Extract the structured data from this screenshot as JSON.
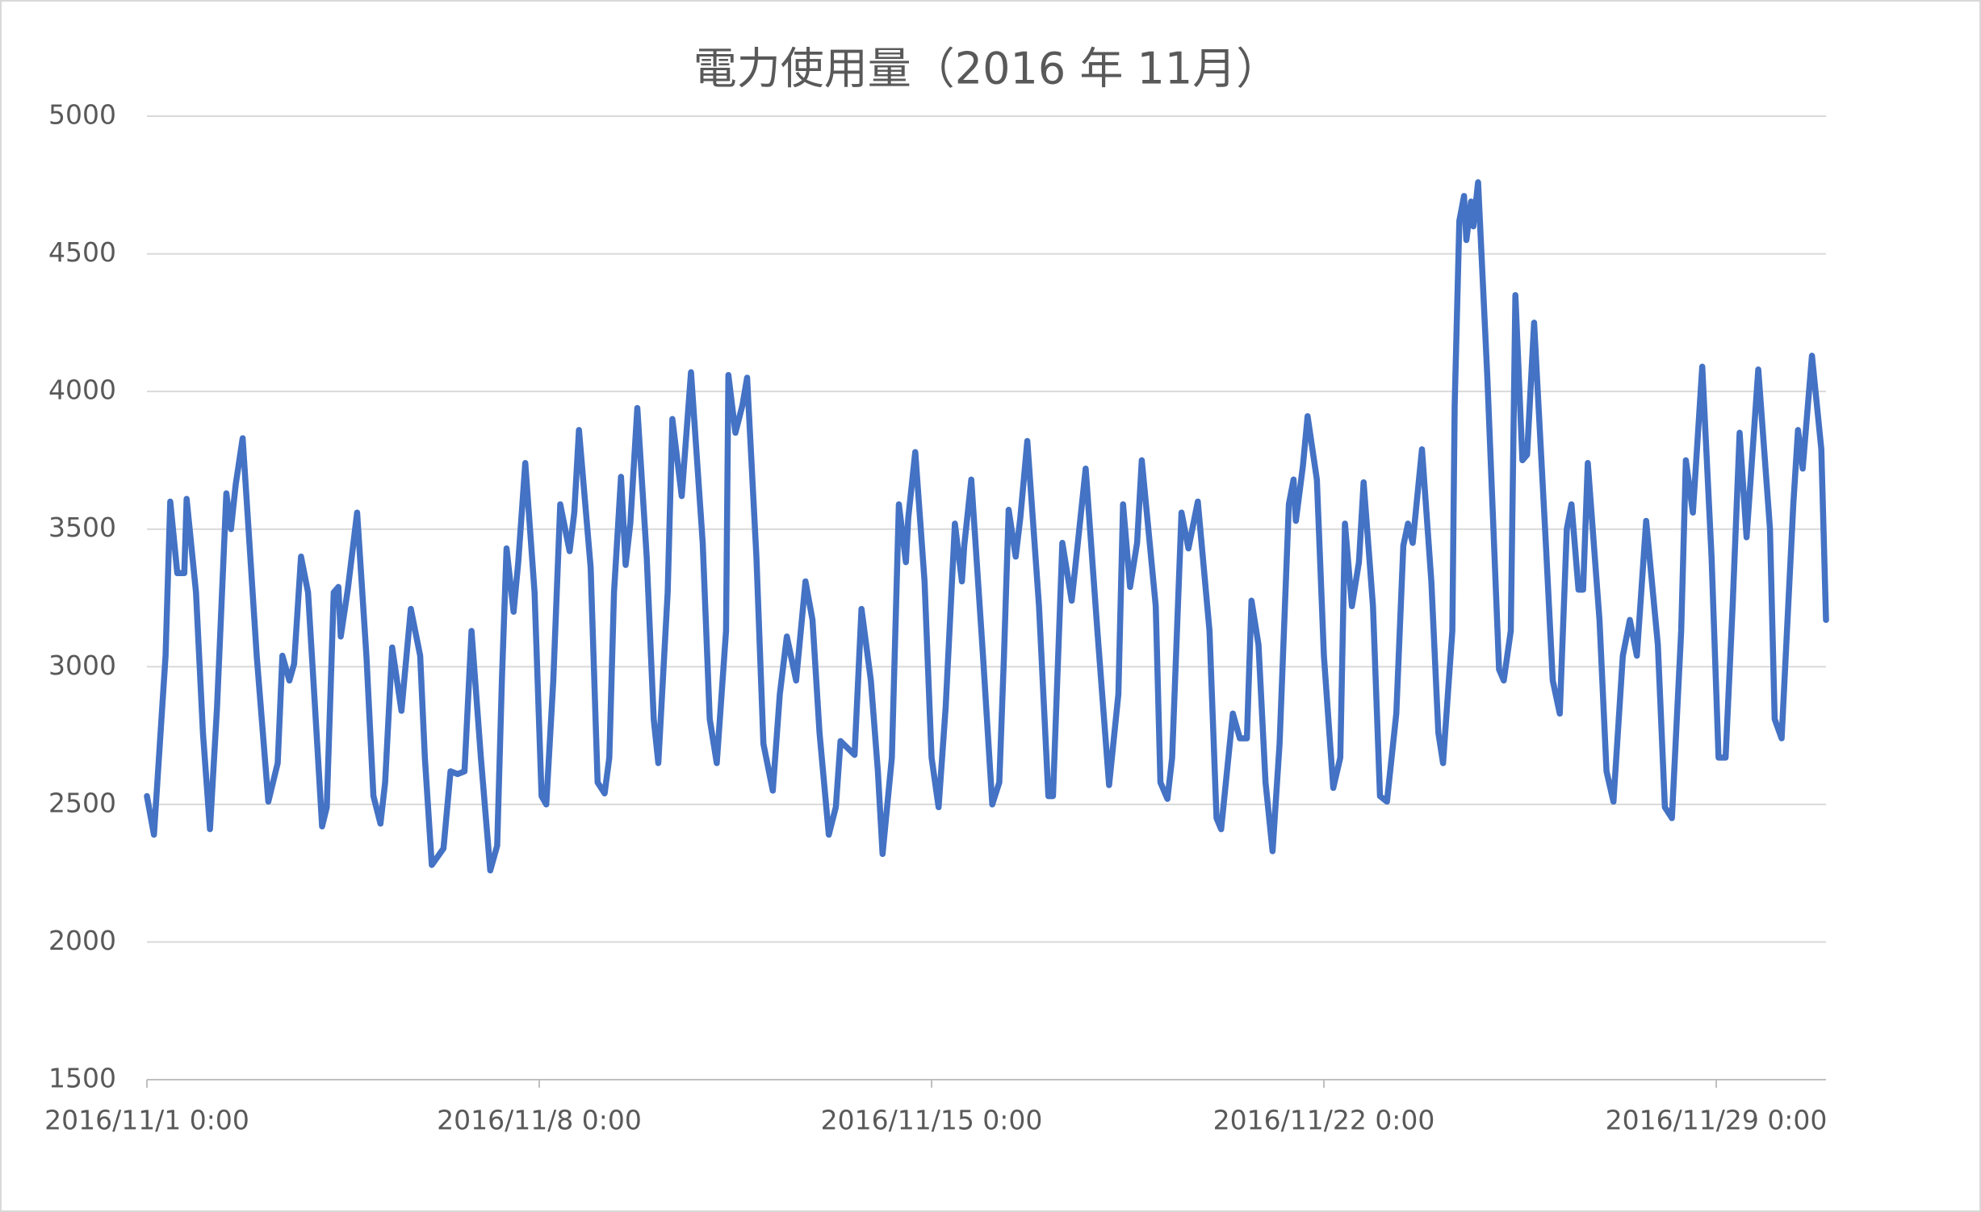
{
  "chart_data": {
    "type": "line",
    "title": "電力使用量（2016 年 11月）",
    "color": "#4472c4",
    "grid": true,
    "ylim": [
      1500,
      5000
    ],
    "yticks": [
      1500,
      2000,
      2500,
      3000,
      3500,
      4000,
      4500,
      5000
    ],
    "xlim": [
      "2016/11/1 0:00",
      "2016/11/30 23:00"
    ],
    "xticks": [
      "2016/11/1 0:00",
      "2016/11/8 0:00",
      "2016/11/15 0:00",
      "2016/11/22 0:00",
      "2016/11/29 0:00"
    ],
    "x": [
      "2016/11/1 0:00",
      "2016/11/1 3:00",
      "2016/11/1 8:00",
      "2016/11/1 10:00",
      "2016/11/1 13:00",
      "2016/11/1 16:00",
      "2016/11/1 17:00",
      "2016/11/1 21:00",
      "2016/11/2 0:00",
      "2016/11/2 3:00",
      "2016/11/2 6:00",
      "2016/11/2 10:00",
      "2016/11/2 12:00",
      "2016/11/2 14:00",
      "2016/11/2 17:00",
      "2016/11/2 23:00",
      "2016/11/3 4:00",
      "2016/11/3 8:00",
      "2016/11/3 10:00",
      "2016/11/3 13:00",
      "2016/11/3 15:00",
      "2016/11/3 18:00",
      "2016/11/3 21:00",
      "2016/11/4 0:00",
      "2016/11/4 3:00",
      "2016/11/4 5:00",
      "2016/11/4 8:00",
      "2016/11/4 10:00",
      "2016/11/4 11:00",
      "2016/11/4 14:00",
      "2016/11/4 18:00",
      "2016/11/4 22:00",
      "2016/11/5 1:00",
      "2016/11/5 4:00",
      "2016/11/5 6:00",
      "2016/11/5 9:00",
      "2016/11/5 13:00",
      "2016/11/5 17:00",
      "2016/11/5 21:00",
      "2016/11/5 23:00",
      "2016/11/6 2:00",
      "2016/11/6 7:00",
      "2016/11/6 10:00",
      "2016/11/6 13:00",
      "2016/11/6 16:00",
      "2016/11/6 19:00",
      "2016/11/6 23:00",
      "2016/11/7 3:00",
      "2016/11/7 6:00",
      "2016/11/7 8:00",
      "2016/11/7 10:00",
      "2016/11/7 13:00",
      "2016/11/7 15:00",
      "2016/11/7 18:00",
      "2016/11/7 22:00",
      "2016/11/8 1:00",
      "2016/11/8 3:00",
      "2016/11/8 6:00",
      "2016/11/8 9:00",
      "2016/11/8 13:00",
      "2016/11/8 15:00",
      "2016/11/8 17:00",
      "2016/11/8 22:00",
      "2016/11/9 1:00",
      "2016/11/9 4:00",
      "2016/11/9 6:00",
      "2016/11/9 8:00",
      "2016/11/9 11:00",
      "2016/11/9 13:00",
      "2016/11/9 15:00",
      "2016/11/9 18:00",
      "2016/11/9 22:00",
      "2016/11/10 1:00",
      "2016/11/10 3:00",
      "2016/11/10 7:00",
      "2016/11/10 9:00",
      "2016/11/10 13:00",
      "2016/11/10 17:00",
      "2016/11/10 22:00",
      "2016/11/11 1:00",
      "2016/11/11 4:00",
      "2016/11/11 8:00",
      "2016/11/11 9:00",
      "2016/11/11 12:00",
      "2016/11/11 15:00",
      "2016/11/11 17:00",
      "2016/11/11 21:00",
      "2016/11/12 0:00",
      "2016/11/12 4:00",
      "2016/11/12 7:00",
      "2016/11/12 10:00",
      "2016/11/12 14:00",
      "2016/11/12 18:00",
      "2016/11/12 21:00",
      "2016/11/13 0:00",
      "2016/11/13 4:00",
      "2016/11/13 7:00",
      "2016/11/13 9:00",
      "2016/11/13 15:00",
      "2016/11/13 18:00",
      "2016/11/13 22:00",
      "2016/11/14 1:00",
      "2016/11/14 3:00",
      "2016/11/14 7:00",
      "2016/11/14 10:00",
      "2016/11/14 13:00",
      "2016/11/14 14:00",
      "2016/11/14 17:00",
      "2016/11/14 21:00",
      "2016/11/15 0:00",
      "2016/11/15 3:00",
      "2016/11/15 6:00",
      "2016/11/15 10:00",
      "2016/11/15 13:00",
      "2016/11/15 14:00",
      "2016/11/15 17:00",
      "2016/11/15 22:00",
      "2016/11/16 2:00",
      "2016/11/16 5:00",
      "2016/11/16 7:00",
      "2016/11/16 9:00",
      "2016/11/16 12:00",
      "2016/11/16 14:00",
      "2016/11/16 17:00",
      "2016/11/16 22:00",
      "2016/11/17 2:00",
      "2016/11/17 4:00",
      "2016/11/17 8:00",
      "2016/11/17 12:00",
      "2016/11/17 14:00",
      "2016/11/17 18:00",
      "2016/11/17 23:00",
      "2016/11/18 4:00",
      "2016/11/18 8:00",
      "2016/11/18 10:00",
      "2016/11/18 13:00",
      "2016/11/18 16:00",
      "2016/11/18 18:00",
      "2016/11/19 0:00",
      "2016/11/19 2:00",
      "2016/11/19 5:00",
      "2016/11/19 7:00",
      "2016/11/19 11:00",
      "2016/11/19 14:00",
      "2016/11/19 18:00",
      "2016/11/19 23:00",
      "2016/11/20 2:00",
      "2016/11/20 4:00",
      "2016/11/20 9:00",
      "2016/11/20 12:00",
      "2016/11/20 15:00",
      "2016/11/20 17:00",
      "2016/11/20 20:00",
      "2016/11/20 23:00",
      "2016/11/21 2:00",
      "2016/11/21 5:00",
      "2016/11/21 9:00",
      "2016/11/21 11:00",
      "2016/11/21 12:00",
      "2016/11/21 15:00",
      "2016/11/21 17:00",
      "2016/11/21 21:00",
      "2016/11/22 0:00",
      "2016/11/22 4:00",
      "2016/11/22 7:00",
      "2016/11/22 9:00",
      "2016/11/22 12:00",
      "2016/11/22 15:00",
      "2016/11/22 17:00",
      "2016/11/22 21:00",
      "2016/11/23 0:00",
      "2016/11/23 3:00",
      "2016/11/23 7:00",
      "2016/11/23 10:00",
      "2016/11/23 12:00",
      "2016/11/23 14:00",
      "2016/11/23 18:00",
      "2016/11/23 22:00",
      "2016/11/24 1:00",
      "2016/11/24 3:00",
      "2016/11/24 7:00",
      "2016/11/24 8:00",
      "2016/11/24 10:00",
      "2016/11/24 12:00",
      "2016/11/24 13:00",
      "2016/11/24 15:00",
      "2016/11/24 16:00",
      "2016/11/24 18:00",
      "2016/11/24 22:00",
      "2016/11/25 3:00",
      "2016/11/25 5:00",
      "2016/11/25 8:00",
      "2016/11/25 10:00",
      "2016/11/25 13:00",
      "2016/11/25 15:00",
      "2016/11/25 18:00",
      "2016/11/25 23:00",
      "2016/11/26 2:00",
      "2016/11/26 5:00",
      "2016/11/26 8:00",
      "2016/11/26 10:00",
      "2016/11/26 13:00",
      "2016/11/26 15:00",
      "2016/11/26 17:00",
      "2016/11/26 22:00",
      "2016/11/27 1:00",
      "2016/11/27 4:00",
      "2016/11/27 8:00",
      "2016/11/27 11:00",
      "2016/11/27 14:00",
      "2016/11/27 18:00",
      "2016/11/27 23:00",
      "2016/11/28 2:00",
      "2016/11/28 5:00",
      "2016/11/28 9:00",
      "2016/11/28 11:00",
      "2016/11/28 14:00",
      "2016/11/28 18:00",
      "2016/11/28 22:00",
      "2016/11/29 1:00",
      "2016/11/29 4:00",
      "2016/11/29 7:00",
      "2016/11/29 10:00",
      "2016/11/29 13:00",
      "2016/11/29 18:00",
      "2016/11/29 23:00",
      "2016/11/30 1:00",
      "2016/11/30 4:00",
      "2016/11/30 9:00",
      "2016/11/30 11:00",
      "2016/11/30 13:00",
      "2016/11/30 17:00",
      "2016/11/30 21:00",
      "2016/11/30 23:00"
    ],
    "values": [
      2530,
      2390,
      3040,
      3600,
      3340,
      3340,
      3610,
      3270,
      2760,
      2410,
      2850,
      3630,
      3500,
      3660,
      3830,
      3040,
      2510,
      2650,
      3040,
      2950,
      3010,
      3400,
      3270,
      2850,
      2420,
      2490,
      3270,
      3290,
      3110,
      3280,
      3560,
      3040,
      2530,
      2430,
      2580,
      3070,
      2840,
      3210,
      3040,
      2670,
      2280,
      2340,
      2620,
      2610,
      2620,
      3130,
      2670,
      2260,
      2350,
      2950,
      3430,
      3200,
      3380,
      3740,
      3270,
      2530,
      2500,
      2950,
      3590,
      3420,
      3560,
      3860,
      3360,
      2580,
      2540,
      2670,
      3270,
      3690,
      3370,
      3520,
      3940,
      3400,
      2810,
      2650,
      3270,
      3900,
      3620,
      4070,
      3450,
      2810,
      2650,
      3130,
      4060,
      3850,
      3950,
      4050,
      3400,
      2720,
      2550,
      2900,
      3110,
      2950,
      3310,
      3170,
      2760,
      2390,
      2490,
      2730,
      2680,
      3210,
      2950,
      2620,
      2320,
      2670,
      3590,
      3380,
      3540,
      3780,
      3310,
      2670,
      2490,
      2850,
      3520,
      3310,
      3440,
      3680,
      3040,
      2500,
      2580,
      3040,
      3570,
      3400,
      3540,
      3820,
      3220,
      2530,
      2530,
      3450,
      3240,
      3400,
      3720,
      3130,
      2570,
      2900,
      3590,
      3290,
      3450,
      3750,
      3220,
      2580,
      2520,
      2670,
      3560,
      3430,
      3600,
      3130,
      2450,
      2410,
      2830,
      2740,
      2740,
      3240,
      3080,
      2580,
      2330,
      2720,
      3590,
      3680,
      3530,
      3730,
      3910,
      3680,
      3040,
      2560,
      2670,
      3520,
      3220,
      3380,
      3670,
      3220,
      2530,
      2510,
      2830,
      3440,
      3520,
      3450,
      3790,
      3310,
      2760,
      2650,
      3130,
      3950,
      4620,
      4710,
      4550,
      4690,
      4600,
      4760,
      4050,
      2990,
      2950,
      3130,
      4350,
      3750,
      3770,
      4250,
      3450,
      2950,
      2830,
      3500,
      3590,
      3280,
      3280,
      3740,
      3170,
      2620,
      2510,
      3040,
      3170,
      3040,
      3530,
      3080,
      2490,
      2450,
      3130,
      3750,
      3560,
      4090,
      3400,
      2670,
      2670,
      3220,
      3850,
      3470,
      4080,
      3500,
      2810,
      2740,
      3590,
      3860,
      3720,
      4130,
      3790,
      3170
    ]
  }
}
